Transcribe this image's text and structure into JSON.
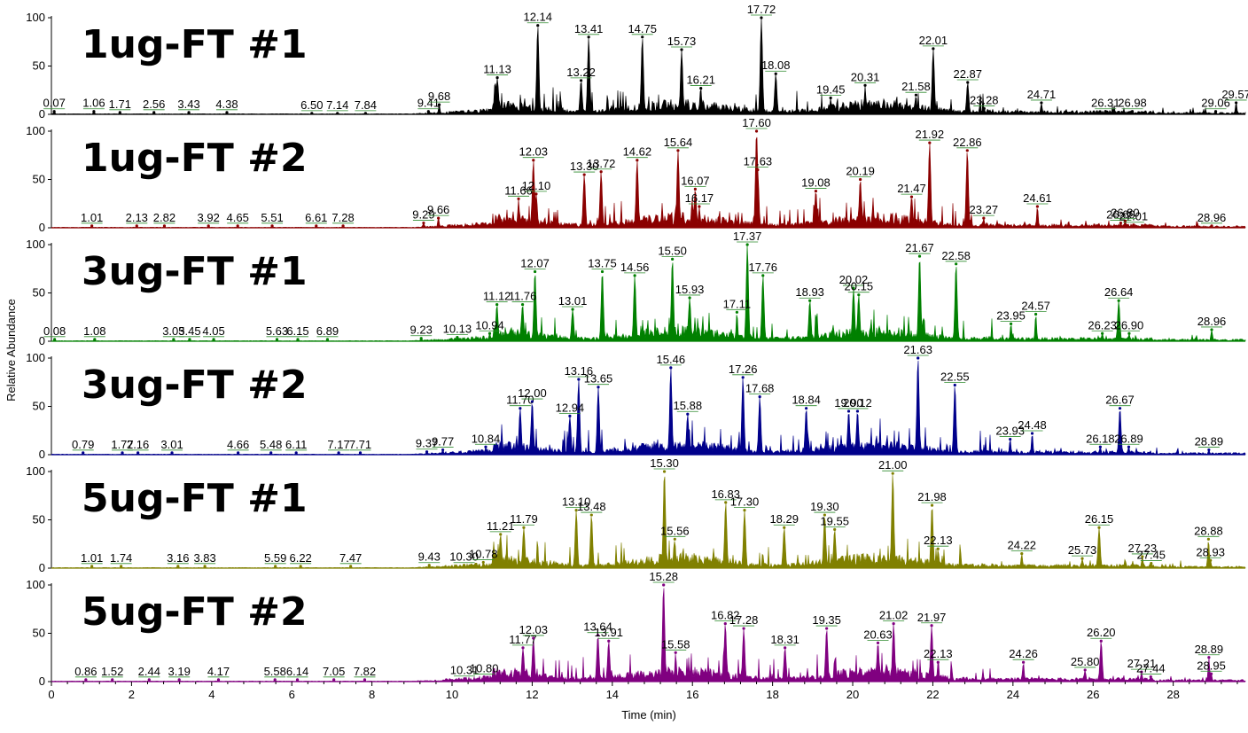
{
  "chart_data": {
    "type": "line",
    "xlabel": "Time (min)",
    "ylabel": "Relative Abundance",
    "xlim": [
      0,
      29.8
    ],
    "ylim": [
      0,
      100
    ],
    "x_ticks": [
      "0",
      "2",
      "4",
      "6",
      "8",
      "10",
      "12",
      "14",
      "16",
      "18",
      "20",
      "22",
      "24",
      "26",
      "28"
    ],
    "y_ticks": [
      "0",
      "50",
      "100"
    ],
    "grid": false,
    "panels": [
      {
        "name": "1ug-FT #1",
        "color": "#000000",
        "peaks": [
          {
            "t": 0.07,
            "y": 3,
            "label": "0.07"
          },
          {
            "t": 1.06,
            "y": 3,
            "label": "1.06"
          },
          {
            "t": 1.71,
            "y": 2,
            "label": "1.71"
          },
          {
            "t": 2.56,
            "y": 2,
            "label": "2.56"
          },
          {
            "t": 3.43,
            "y": 2,
            "label": "3.43"
          },
          {
            "t": 4.38,
            "y": 2,
            "label": "4.38"
          },
          {
            "t": 6.5,
            "y": 1,
            "label": "6.50"
          },
          {
            "t": 7.14,
            "y": 1,
            "label": "7.14"
          },
          {
            "t": 7.84,
            "y": 1,
            "label": "7.84"
          },
          {
            "t": 9.41,
            "y": 3,
            "label": "9.41"
          },
          {
            "t": 9.68,
            "y": 10,
            "label": "9.68"
          },
          {
            "t": 11.13,
            "y": 38,
            "label": "11.13"
          },
          {
            "t": 12.14,
            "y": 92,
            "label": "12.14"
          },
          {
            "t": 13.22,
            "y": 35,
            "label": "13.22"
          },
          {
            "t": 13.41,
            "y": 80,
            "label": "13.41"
          },
          {
            "t": 14.75,
            "y": 80,
            "label": "14.75"
          },
          {
            "t": 15.73,
            "y": 67,
            "label": "15.73"
          },
          {
            "t": 16.21,
            "y": 27,
            "label": "16.21"
          },
          {
            "t": 17.72,
            "y": 100,
            "label": "17.72"
          },
          {
            "t": 18.08,
            "y": 42,
            "label": "18.08"
          },
          {
            "t": 19.45,
            "y": 17,
            "label": "19.45"
          },
          {
            "t": 20.31,
            "y": 30,
            "label": "20.31"
          },
          {
            "t": 21.58,
            "y": 20,
            "label": "21.58"
          },
          {
            "t": 22.01,
            "y": 68,
            "label": "22.01"
          },
          {
            "t": 22.87,
            "y": 33,
            "label": "22.87"
          },
          {
            "t": 23.28,
            "y": 6,
            "label": "23.28"
          },
          {
            "t": 24.71,
            "y": 12,
            "label": "24.71"
          },
          {
            "t": 26.31,
            "y": 3,
            "label": "26.31"
          },
          {
            "t": 26.98,
            "y": 3,
            "label": "26.98"
          },
          {
            "t": 29.06,
            "y": 3,
            "label": "29.06"
          },
          {
            "t": 29.57,
            "y": 12,
            "label": "29.57"
          }
        ]
      },
      {
        "name": "1ug-FT #2",
        "color": "#8b0000",
        "peaks": [
          {
            "t": 1.01,
            "y": 2,
            "label": "1.01"
          },
          {
            "t": 2.13,
            "y": 2,
            "label": "2.13"
          },
          {
            "t": 2.82,
            "y": 2,
            "label": "2.82"
          },
          {
            "t": 3.92,
            "y": 2,
            "label": "3.92"
          },
          {
            "t": 4.65,
            "y": 2,
            "label": "4.65"
          },
          {
            "t": 5.51,
            "y": 2,
            "label": "5.51"
          },
          {
            "t": 6.61,
            "y": 2,
            "label": "6.61"
          },
          {
            "t": 7.28,
            "y": 2,
            "label": "7.28"
          },
          {
            "t": 9.29,
            "y": 5,
            "label": "9.29"
          },
          {
            "t": 9.66,
            "y": 10,
            "label": "9.66"
          },
          {
            "t": 11.66,
            "y": 30,
            "label": "11.66"
          },
          {
            "t": 12.03,
            "y": 70,
            "label": "12.03"
          },
          {
            "t": 12.1,
            "y": 35,
            "label": "12.10"
          },
          {
            "t": 13.3,
            "y": 55,
            "label": "13.30"
          },
          {
            "t": 13.72,
            "y": 58,
            "label": "13.72"
          },
          {
            "t": 14.62,
            "y": 70,
            "label": "14.62"
          },
          {
            "t": 15.64,
            "y": 80,
            "label": "15.64"
          },
          {
            "t": 16.07,
            "y": 40,
            "label": "16.07"
          },
          {
            "t": 16.17,
            "y": 22,
            "label": "16.17"
          },
          {
            "t": 17.6,
            "y": 100,
            "label": "17.60"
          },
          {
            "t": 17.63,
            "y": 60,
            "label": "17.63"
          },
          {
            "t": 19.08,
            "y": 38,
            "label": "19.08"
          },
          {
            "t": 20.19,
            "y": 50,
            "label": "20.19"
          },
          {
            "t": 21.47,
            "y": 32,
            "label": "21.47"
          },
          {
            "t": 21.92,
            "y": 88,
            "label": "21.92"
          },
          {
            "t": 22.86,
            "y": 80,
            "label": "22.86"
          },
          {
            "t": 23.27,
            "y": 10,
            "label": "23.27"
          },
          {
            "t": 24.61,
            "y": 22,
            "label": "24.61"
          },
          {
            "t": 26.69,
            "y": 5,
            "label": "26.69"
          },
          {
            "t": 26.8,
            "y": 7,
            "label": "26.80"
          },
          {
            "t": 27.01,
            "y": 3,
            "label": "27.01"
          },
          {
            "t": 28.96,
            "y": 2,
            "label": "28.96"
          }
        ]
      },
      {
        "name": "3ug-FT #1",
        "color": "#008000",
        "peaks": [
          {
            "t": 0.08,
            "y": 2,
            "label": "0.08"
          },
          {
            "t": 1.08,
            "y": 2,
            "label": "1.08"
          },
          {
            "t": 3.05,
            "y": 2,
            "label": "3.05"
          },
          {
            "t": 3.45,
            "y": 2,
            "label": "3.45"
          },
          {
            "t": 4.05,
            "y": 2,
            "label": "4.05"
          },
          {
            "t": 5.63,
            "y": 2,
            "label": "5.63"
          },
          {
            "t": 6.15,
            "y": 2,
            "label": "6.15"
          },
          {
            "t": 6.89,
            "y": 2,
            "label": "6.89"
          },
          {
            "t": 9.23,
            "y": 3,
            "label": "9.23"
          },
          {
            "t": 10.13,
            "y": 4,
            "label": "10.13"
          },
          {
            "t": 10.94,
            "y": 8,
            "label": "10.94"
          },
          {
            "t": 11.12,
            "y": 38,
            "label": "11.12"
          },
          {
            "t": 11.76,
            "y": 38,
            "label": "11.76"
          },
          {
            "t": 12.07,
            "y": 72,
            "label": "12.07"
          },
          {
            "t": 13.01,
            "y": 33,
            "label": "13.01"
          },
          {
            "t": 13.75,
            "y": 72,
            "label": "13.75"
          },
          {
            "t": 14.56,
            "y": 68,
            "label": "14.56"
          },
          {
            "t": 15.5,
            "y": 85,
            "label": "15.50"
          },
          {
            "t": 15.93,
            "y": 45,
            "label": "15.93"
          },
          {
            "t": 17.11,
            "y": 30,
            "label": "17.11"
          },
          {
            "t": 17.37,
            "y": 100,
            "label": "17.37"
          },
          {
            "t": 17.76,
            "y": 68,
            "label": "17.76"
          },
          {
            "t": 18.93,
            "y": 42,
            "label": "18.93"
          },
          {
            "t": 20.02,
            "y": 55,
            "label": "20.02"
          },
          {
            "t": 20.15,
            "y": 48,
            "label": "20.15"
          },
          {
            "t": 21.67,
            "y": 88,
            "label": "21.67"
          },
          {
            "t": 22.58,
            "y": 80,
            "label": "22.58"
          },
          {
            "t": 23.95,
            "y": 18,
            "label": "23.95"
          },
          {
            "t": 24.57,
            "y": 28,
            "label": "24.57"
          },
          {
            "t": 26.23,
            "y": 8,
            "label": "26.23"
          },
          {
            "t": 26.64,
            "y": 42,
            "label": "26.64"
          },
          {
            "t": 26.9,
            "y": 8,
            "label": "26.90"
          },
          {
            "t": 28.96,
            "y": 12,
            "label": "28.96"
          }
        ]
      },
      {
        "name": "3ug-FT #2",
        "color": "#00008b",
        "peaks": [
          {
            "t": 0.79,
            "y": 2,
            "label": "0.79"
          },
          {
            "t": 1.77,
            "y": 2,
            "label": "1.77"
          },
          {
            "t": 2.16,
            "y": 2,
            "label": "2.16"
          },
          {
            "t": 3.01,
            "y": 2,
            "label": "3.01"
          },
          {
            "t": 4.66,
            "y": 2,
            "label": "4.66"
          },
          {
            "t": 5.48,
            "y": 2,
            "label": "5.48"
          },
          {
            "t": 6.11,
            "y": 2,
            "label": "6.11"
          },
          {
            "t": 7.17,
            "y": 2,
            "label": "7.17"
          },
          {
            "t": 7.71,
            "y": 2,
            "label": "7.71"
          },
          {
            "t": 9.37,
            "y": 3,
            "label": "9.37"
          },
          {
            "t": 9.77,
            "y": 5,
            "label": "9.77"
          },
          {
            "t": 10.84,
            "y": 8,
            "label": "10.84"
          },
          {
            "t": 11.7,
            "y": 48,
            "label": "11.70"
          },
          {
            "t": 12.0,
            "y": 55,
            "label": "12.00"
          },
          {
            "t": 12.94,
            "y": 40,
            "label": "12.94"
          },
          {
            "t": 13.16,
            "y": 78,
            "label": "13.16"
          },
          {
            "t": 13.65,
            "y": 70,
            "label": "13.65"
          },
          {
            "t": 15.46,
            "y": 90,
            "label": "15.46"
          },
          {
            "t": 15.88,
            "y": 42,
            "label": "15.88"
          },
          {
            "t": 17.26,
            "y": 80,
            "label": "17.26"
          },
          {
            "t": 17.68,
            "y": 60,
            "label": "17.68"
          },
          {
            "t": 18.84,
            "y": 48,
            "label": "18.84"
          },
          {
            "t": 19.9,
            "y": 45,
            "label": "19.90"
          },
          {
            "t": 20.12,
            "y": 45,
            "label": "20.12"
          },
          {
            "t": 21.63,
            "y": 100,
            "label": "21.63"
          },
          {
            "t": 22.55,
            "y": 72,
            "label": "22.55"
          },
          {
            "t": 23.93,
            "y": 16,
            "label": "23.93"
          },
          {
            "t": 24.48,
            "y": 22,
            "label": "24.48"
          },
          {
            "t": 26.18,
            "y": 8,
            "label": "26.18"
          },
          {
            "t": 26.67,
            "y": 48,
            "label": "26.67"
          },
          {
            "t": 26.89,
            "y": 8,
            "label": "26.89"
          },
          {
            "t": 28.89,
            "y": 5,
            "label": "28.89"
          }
        ]
      },
      {
        "name": "5ug-FT #1",
        "color": "#808000",
        "peaks": [
          {
            "t": 1.01,
            "y": 2,
            "label": "1.01"
          },
          {
            "t": 1.74,
            "y": 2,
            "label": "1.74"
          },
          {
            "t": 3.16,
            "y": 2,
            "label": "3.16"
          },
          {
            "t": 3.83,
            "y": 2,
            "label": "3.83"
          },
          {
            "t": 5.59,
            "y": 2,
            "label": "5.59"
          },
          {
            "t": 6.22,
            "y": 2,
            "label": "6.22"
          },
          {
            "t": 7.47,
            "y": 2,
            "label": "7.47"
          },
          {
            "t": 9.43,
            "y": 3,
            "label": "9.43"
          },
          {
            "t": 10.3,
            "y": 3,
            "label": "10.30"
          },
          {
            "t": 10.78,
            "y": 6,
            "label": "10.78"
          },
          {
            "t": 11.21,
            "y": 35,
            "label": "11.21"
          },
          {
            "t": 11.79,
            "y": 42,
            "label": "11.79"
          },
          {
            "t": 13.1,
            "y": 60,
            "label": "13.10"
          },
          {
            "t": 13.48,
            "y": 55,
            "label": "13.48"
          },
          {
            "t": 15.3,
            "y": 100,
            "label": "15.30"
          },
          {
            "t": 15.56,
            "y": 30,
            "label": "15.56"
          },
          {
            "t": 16.83,
            "y": 68,
            "label": "16.83"
          },
          {
            "t": 17.3,
            "y": 60,
            "label": "17.30"
          },
          {
            "t": 18.29,
            "y": 42,
            "label": "18.29"
          },
          {
            "t": 19.3,
            "y": 55,
            "label": "19.30"
          },
          {
            "t": 19.55,
            "y": 40,
            "label": "19.55"
          },
          {
            "t": 21.0,
            "y": 98,
            "label": "21.00"
          },
          {
            "t": 21.98,
            "y": 65,
            "label": "21.98"
          },
          {
            "t": 22.13,
            "y": 20,
            "label": "22.13"
          },
          {
            "t": 24.22,
            "y": 15,
            "label": "24.22"
          },
          {
            "t": 25.73,
            "y": 10,
            "label": "25.73"
          },
          {
            "t": 26.15,
            "y": 42,
            "label": "26.15"
          },
          {
            "t": 27.23,
            "y": 12,
            "label": "27.23"
          },
          {
            "t": 27.45,
            "y": 5,
            "label": "27.45"
          },
          {
            "t": 28.88,
            "y": 30,
            "label": "28.88"
          },
          {
            "t": 28.93,
            "y": 8,
            "label": "28.93"
          }
        ]
      },
      {
        "name": "5ug-FT #2",
        "color": "#800080",
        "peaks": [
          {
            "t": 0.86,
            "y": 2,
            "label": "0.86"
          },
          {
            "t": 1.52,
            "y": 2,
            "label": "1.52"
          },
          {
            "t": 2.44,
            "y": 2,
            "label": "2.44"
          },
          {
            "t": 3.19,
            "y": 2,
            "label": "3.19"
          },
          {
            "t": 4.17,
            "y": 2,
            "label": "4.17"
          },
          {
            "t": 5.58,
            "y": 2,
            "label": "5.58"
          },
          {
            "t": 6.14,
            "y": 2,
            "label": "6.14"
          },
          {
            "t": 7.05,
            "y": 2,
            "label": "7.05"
          },
          {
            "t": 7.82,
            "y": 2,
            "label": "7.82"
          },
          {
            "t": 10.31,
            "y": 3,
            "label": "10.31"
          },
          {
            "t": 10.8,
            "y": 5,
            "label": "10.80"
          },
          {
            "t": 11.77,
            "y": 35,
            "label": "11.77"
          },
          {
            "t": 12.03,
            "y": 45,
            "label": "12.03"
          },
          {
            "t": 13.64,
            "y": 48,
            "label": "13.64"
          },
          {
            "t": 13.91,
            "y": 42,
            "label": "13.91"
          },
          {
            "t": 15.28,
            "y": 100,
            "label": "15.28"
          },
          {
            "t": 15.58,
            "y": 30,
            "label": "15.58"
          },
          {
            "t": 16.82,
            "y": 60,
            "label": "16.82"
          },
          {
            "t": 17.28,
            "y": 55,
            "label": "17.28"
          },
          {
            "t": 18.31,
            "y": 35,
            "label": "18.31"
          },
          {
            "t": 19.35,
            "y": 55,
            "label": "19.35"
          },
          {
            "t": 20.63,
            "y": 40,
            "label": "20.63"
          },
          {
            "t": 21.02,
            "y": 60,
            "label": "21.02"
          },
          {
            "t": 21.97,
            "y": 58,
            "label": "21.97"
          },
          {
            "t": 22.13,
            "y": 20,
            "label": "22.13"
          },
          {
            "t": 24.26,
            "y": 20,
            "label": "24.26"
          },
          {
            "t": 25.8,
            "y": 12,
            "label": "25.80"
          },
          {
            "t": 26.2,
            "y": 42,
            "label": "26.20"
          },
          {
            "t": 27.21,
            "y": 10,
            "label": "27.21"
          },
          {
            "t": 27.44,
            "y": 5,
            "label": "27.44"
          },
          {
            "t": 28.89,
            "y": 25,
            "label": "28.89"
          },
          {
            "t": 28.95,
            "y": 8,
            "label": "28.95"
          }
        ]
      }
    ]
  }
}
